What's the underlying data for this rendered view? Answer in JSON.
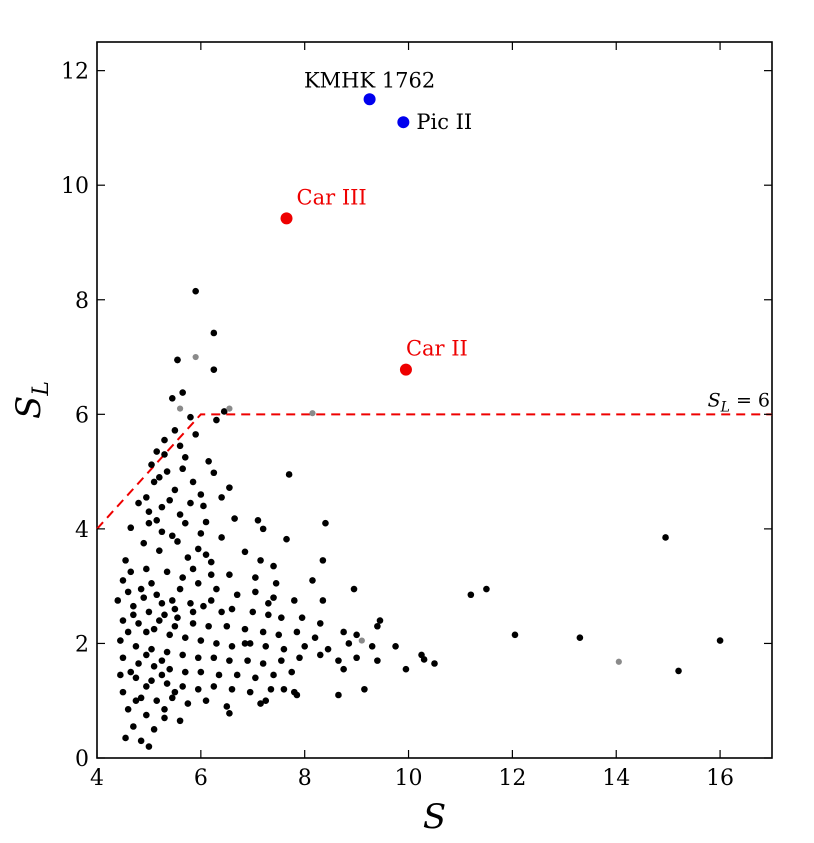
{
  "chart_data": {
    "type": "scatter",
    "xlabel": "S",
    "ylabel": "S_L",
    "xlim": [
      4,
      17
    ],
    "ylim": [
      0,
      12.5
    ],
    "x_ticks": [
      4,
      6,
      8,
      10,
      12,
      14,
      16
    ],
    "y_ticks": [
      0,
      2,
      4,
      6,
      8,
      10,
      12
    ],
    "grid": false,
    "threshold": {
      "label": "S_L = 6",
      "line": [
        [
          4.0,
          4.0
        ],
        [
          6.0,
          6.0
        ],
        [
          17.0,
          6.0
        ]
      ],
      "color": "#ee0000",
      "style": "dashed"
    },
    "highlighted": [
      {
        "label": "KMHK 1762",
        "x": 9.25,
        "y": 11.5,
        "color": "#0000ee"
      },
      {
        "label": "Pic II",
        "x": 9.9,
        "y": 11.1,
        "color": "#0000ee"
      },
      {
        "label": "Car III",
        "x": 7.65,
        "y": 9.42,
        "color": "#ee0000"
      },
      {
        "label": "Car II",
        "x": 9.95,
        "y": 6.78,
        "color": "#ee0000"
      }
    ],
    "grey_points": [
      [
        5.6,
        6.1
      ],
      [
        5.9,
        7.0
      ],
      [
        6.55,
        6.1
      ],
      [
        8.15,
        6.02
      ],
      [
        9.1,
        2.05
      ],
      [
        14.05,
        1.68
      ]
    ],
    "black_points": [
      [
        5.9,
        8.15
      ],
      [
        6.25,
        7.42
      ],
      [
        6.25,
        6.78
      ],
      [
        5.55,
        6.95
      ],
      [
        5.65,
        6.38
      ],
      [
        5.45,
        6.28
      ],
      [
        6.45,
        6.05
      ],
      [
        5.8,
        5.95
      ],
      [
        6.3,
        5.9
      ],
      [
        5.5,
        5.72
      ],
      [
        5.3,
        5.55
      ],
      [
        5.6,
        5.45
      ],
      [
        5.15,
        5.35
      ],
      [
        5.05,
        5.12
      ],
      [
        5.7,
        5.25
      ],
      [
        6.15,
        5.18
      ],
      [
        6.25,
        4.98
      ],
      [
        6.55,
        4.72
      ],
      [
        7.7,
        4.95
      ],
      [
        5.9,
        5.65
      ],
      [
        5.35,
        5.0
      ],
      [
        5.85,
        4.82
      ],
      [
        6.4,
        4.55
      ],
      [
        5.1,
        4.82
      ],
      [
        5.5,
        4.68
      ],
      [
        4.95,
        4.55
      ],
      [
        5.8,
        4.45
      ],
      [
        6.05,
        4.4
      ],
      [
        6.1,
        4.12
      ],
      [
        6.65,
        4.18
      ],
      [
        7.1,
        4.15
      ],
      [
        7.2,
        4.0
      ],
      [
        8.4,
        4.1
      ],
      [
        4.8,
        4.45
      ],
      [
        5.25,
        4.38
      ],
      [
        5.6,
        4.25
      ],
      [
        6.0,
        3.92
      ],
      [
        6.4,
        3.85
      ],
      [
        7.65,
        3.82
      ],
      [
        5.0,
        4.1
      ],
      [
        4.65,
        4.02
      ],
      [
        5.45,
        3.88
      ],
      [
        5.95,
        3.65
      ],
      [
        6.1,
        3.55
      ],
      [
        6.85,
        3.6
      ],
      [
        7.15,
        3.45
      ],
      [
        7.4,
        3.35
      ],
      [
        8.35,
        3.45
      ],
      [
        4.9,
        3.75
      ],
      [
        5.2,
        3.62
      ],
      [
        5.75,
        3.5
      ],
      [
        6.2,
        3.42
      ],
      [
        6.55,
        3.2
      ],
      [
        7.05,
        3.15
      ],
      [
        7.45,
        3.05
      ],
      [
        8.15,
        3.1
      ],
      [
        4.55,
        3.45
      ],
      [
        4.95,
        3.3
      ],
      [
        5.35,
        3.25
      ],
      [
        5.65,
        3.15
      ],
      [
        5.95,
        3.05
      ],
      [
        6.3,
        2.95
      ],
      [
        6.7,
        2.85
      ],
      [
        7.05,
        2.9
      ],
      [
        7.4,
        2.8
      ],
      [
        7.8,
        2.75
      ],
      [
        8.35,
        2.75
      ],
      [
        8.95,
        2.95
      ],
      [
        4.5,
        3.1
      ],
      [
        4.85,
        2.95
      ],
      [
        5.15,
        2.85
      ],
      [
        5.45,
        2.75
      ],
      [
        5.8,
        2.7
      ],
      [
        6.05,
        2.65
      ],
      [
        6.4,
        2.55
      ],
      [
        6.6,
        2.6
      ],
      [
        7.0,
        2.55
      ],
      [
        7.3,
        2.5
      ],
      [
        7.55,
        2.45
      ],
      [
        7.95,
        2.45
      ],
      [
        8.3,
        2.35
      ],
      [
        9.45,
        2.4
      ],
      [
        4.4,
        2.75
      ],
      [
        4.7,
        2.65
      ],
      [
        5.0,
        2.55
      ],
      [
        5.3,
        2.5
      ],
      [
        5.55,
        2.45
      ],
      [
        5.85,
        2.35
      ],
      [
        6.15,
        2.3
      ],
      [
        6.5,
        2.3
      ],
      [
        6.85,
        2.25
      ],
      [
        7.2,
        2.2
      ],
      [
        7.5,
        2.15
      ],
      [
        7.85,
        2.2
      ],
      [
        8.2,
        2.1
      ],
      [
        8.75,
        2.2
      ],
      [
        9.0,
        2.15
      ],
      [
        9.4,
        2.3
      ],
      [
        4.5,
        2.4
      ],
      [
        4.8,
        2.35
      ],
      [
        5.1,
        2.25
      ],
      [
        5.4,
        2.15
      ],
      [
        5.7,
        2.1
      ],
      [
        6.0,
        2.05
      ],
      [
        6.3,
        2.0
      ],
      [
        6.6,
        1.95
      ],
      [
        6.95,
        2.0
      ],
      [
        7.25,
        1.95
      ],
      [
        7.6,
        1.9
      ],
      [
        8.0,
        1.95
      ],
      [
        8.45,
        1.9
      ],
      [
        8.85,
        2.0
      ],
      [
        9.3,
        1.95
      ],
      [
        9.75,
        1.95
      ],
      [
        4.45,
        2.05
      ],
      [
        4.75,
        1.95
      ],
      [
        5.05,
        1.9
      ],
      [
        5.35,
        1.85
      ],
      [
        5.65,
        1.8
      ],
      [
        5.95,
        1.75
      ],
      [
        6.25,
        1.75
      ],
      [
        6.55,
        1.7
      ],
      [
        6.9,
        1.7
      ],
      [
        7.2,
        1.65
      ],
      [
        7.55,
        1.7
      ],
      [
        7.9,
        1.75
      ],
      [
        8.3,
        1.8
      ],
      [
        8.65,
        1.7
      ],
      [
        9.0,
        1.75
      ],
      [
        9.4,
        1.7
      ],
      [
        10.25,
        1.8
      ],
      [
        4.5,
        1.75
      ],
      [
        4.8,
        1.65
      ],
      [
        5.1,
        1.6
      ],
      [
        5.4,
        1.55
      ],
      [
        5.7,
        1.5
      ],
      [
        6.0,
        1.5
      ],
      [
        6.35,
        1.45
      ],
      [
        6.7,
        1.45
      ],
      [
        7.05,
        1.4
      ],
      [
        7.4,
        1.45
      ],
      [
        7.75,
        1.5
      ],
      [
        8.75,
        1.55
      ],
      [
        9.95,
        1.55
      ],
      [
        10.5,
        1.65
      ],
      [
        4.45,
        1.45
      ],
      [
        4.75,
        1.4
      ],
      [
        5.05,
        1.35
      ],
      [
        5.35,
        1.3
      ],
      [
        5.65,
        1.25
      ],
      [
        5.95,
        1.2
      ],
      [
        6.25,
        1.25
      ],
      [
        6.6,
        1.2
      ],
      [
        6.95,
        1.15
      ],
      [
        7.35,
        1.2
      ],
      [
        7.8,
        1.15
      ],
      [
        8.65,
        1.1
      ],
      [
        9.15,
        1.2
      ],
      [
        4.5,
        1.15
      ],
      [
        4.85,
        1.05
      ],
      [
        5.15,
        1.0
      ],
      [
        5.45,
        1.05
      ],
      [
        5.75,
        0.95
      ],
      [
        6.1,
        1.0
      ],
      [
        6.5,
        0.9
      ],
      [
        7.15,
        0.95
      ],
      [
        4.6,
        0.85
      ],
      [
        4.95,
        0.75
      ],
      [
        5.3,
        0.7
      ],
      [
        5.6,
        0.65
      ],
      [
        4.7,
        0.55
      ],
      [
        5.1,
        0.5
      ],
      [
        4.55,
        0.35
      ],
      [
        4.85,
        0.3
      ],
      [
        5.0,
        0.2
      ],
      [
        6.55,
        0.78
      ],
      [
        7.25,
        1.0
      ],
      [
        7.6,
        1.2
      ],
      [
        7.85,
        1.1
      ],
      [
        10.3,
        1.72
      ],
      [
        11.2,
        2.85
      ],
      [
        11.5,
        2.95
      ],
      [
        12.05,
        2.15
      ],
      [
        13.3,
        2.1
      ],
      [
        14.95,
        3.85
      ],
      [
        15.2,
        1.52
      ],
      [
        16.0,
        2.05
      ],
      [
        5.55,
        6.95
      ],
      [
        5.2,
        4.9
      ],
      [
        5.0,
        4.3
      ],
      [
        5.7,
        4.1
      ],
      [
        5.25,
        3.95
      ],
      [
        5.55,
        3.78
      ],
      [
        5.85,
        3.3
      ],
      [
        4.65,
        3.25
      ],
      [
        5.05,
        3.05
      ],
      [
        5.6,
        2.95
      ],
      [
        4.6,
        2.9
      ],
      [
        4.9,
        2.8
      ],
      [
        5.25,
        2.7
      ],
      [
        5.5,
        2.6
      ],
      [
        4.7,
        2.5
      ],
      [
        5.2,
        2.4
      ],
      [
        4.95,
        2.2
      ],
      [
        5.5,
        2.3
      ],
      [
        4.6,
        2.2
      ],
      [
        4.95,
        1.8
      ],
      [
        5.25,
        1.7
      ],
      [
        4.65,
        1.5
      ],
      [
        5.25,
        1.45
      ],
      [
        4.95,
        1.25
      ],
      [
        5.5,
        1.15
      ],
      [
        4.75,
        1.0
      ],
      [
        5.3,
        0.85
      ],
      [
        6.85,
        2.0
      ],
      [
        7.3,
        2.7
      ],
      [
        6.2,
        2.75
      ],
      [
        5.85,
        2.55
      ],
      [
        6.0,
        4.6
      ],
      [
        5.3,
        5.3
      ],
      [
        5.65,
        5.05
      ],
      [
        5.4,
        4.5
      ],
      [
        5.15,
        4.15
      ],
      [
        6.2,
        3.2
      ]
    ]
  }
}
